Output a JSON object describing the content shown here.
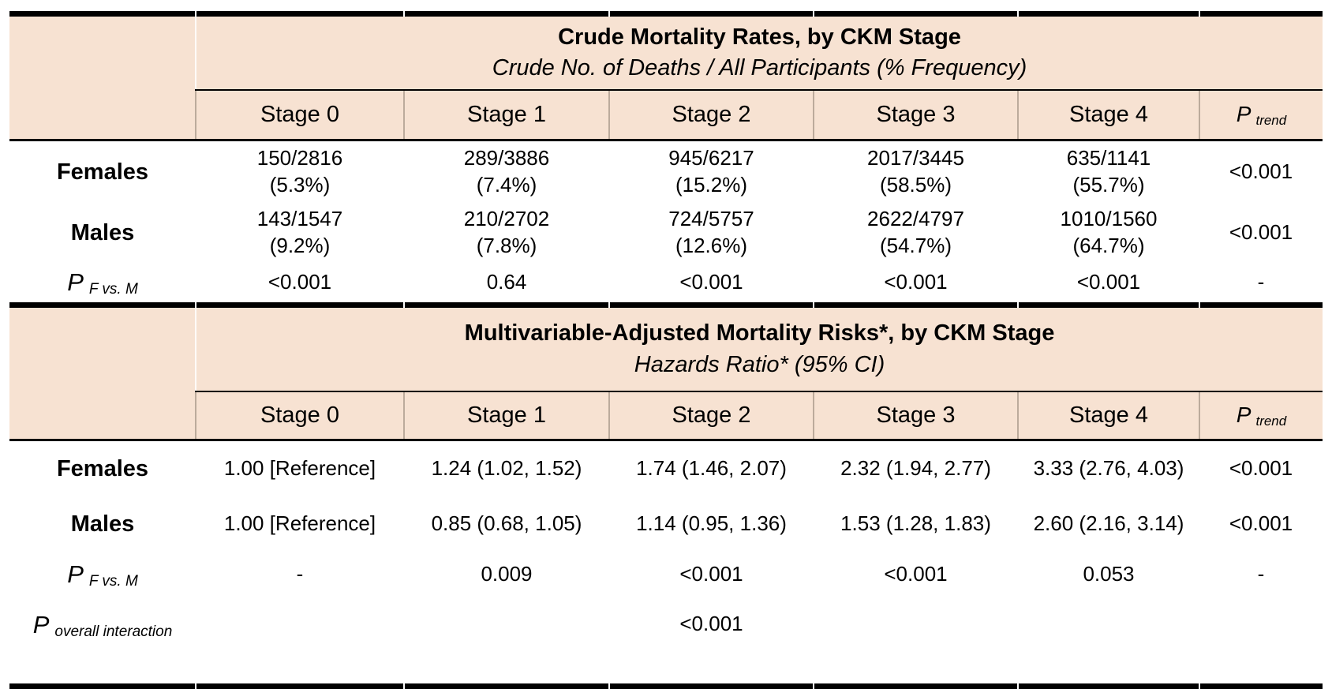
{
  "colors": {
    "band_background": "#f7e2d2",
    "line": "#000000",
    "column_separator": "#bcab9c",
    "text": "#000000"
  },
  "labels": {
    "p": "P",
    "trend": "trend",
    "dash": "-"
  },
  "table1": {
    "title": "Crude Mortality Rates, by CKM Stage",
    "subtitle": "Crude No. of Deaths / All Participants (% Frequency)",
    "stages": [
      "Stage 0",
      "Stage 1",
      "Stage 2",
      "Stage 3",
      "Stage 4"
    ],
    "rows": [
      {
        "label": "Females",
        "counts": [
          "150/2816",
          "289/3886",
          "945/6217",
          "2017/3445",
          "635/1141"
        ],
        "pcts": [
          "(5.3%)",
          "(7.4%)",
          "(15.2%)",
          "(58.5%)",
          "(55.7%)"
        ],
        "p_trend": "<0.001"
      },
      {
        "label": "Males",
        "counts": [
          "143/1547",
          "210/2702",
          "724/5757",
          "2622/4797",
          "1010/1560"
        ],
        "pcts": [
          "(9.2%)",
          "(7.8%)",
          "(12.6%)",
          "(54.7%)",
          "(64.7%)"
        ],
        "p_trend": "<0.001"
      }
    ],
    "p_row": {
      "label_main": "P",
      "label_sub": "F vs. M",
      "values": [
        "<0.001",
        "0.64",
        "<0.001",
        "<0.001",
        "<0.001"
      ],
      "p_trend": "-"
    }
  },
  "table2": {
    "title": "Multivariable-Adjusted Mortality Risks*, by CKM Stage",
    "subtitle": "Hazards Ratio* (95% CI)",
    "stages": [
      "Stage 0",
      "Stage 1",
      "Stage 2",
      "Stage 3",
      "Stage 4"
    ],
    "rows": [
      {
        "label": "Females",
        "cells": [
          "1.00 [Reference]",
          "1.24 (1.02, 1.52)",
          "1.74 (1.46, 2.07)",
          "2.32 (1.94, 2.77)",
          "3.33 (2.76, 4.03)"
        ],
        "p_trend": "<0.001"
      },
      {
        "label": "Males",
        "cells": [
          "1.00 [Reference]",
          "0.85 (0.68, 1.05)",
          "1.14 (0.95, 1.36)",
          "1.53 (1.28, 1.83)",
          "2.60 (2.16, 3.14)"
        ],
        "p_trend": "<0.001"
      }
    ],
    "p_row": {
      "label_main": "P",
      "label_sub": "F vs. M",
      "values": [
        "-",
        "0.009",
        "<0.001",
        "<0.001",
        "0.053"
      ],
      "p_trend": "-"
    },
    "interaction_row": {
      "label_main": "P",
      "label_sub": "overall interaction",
      "value": "<0.001"
    }
  }
}
